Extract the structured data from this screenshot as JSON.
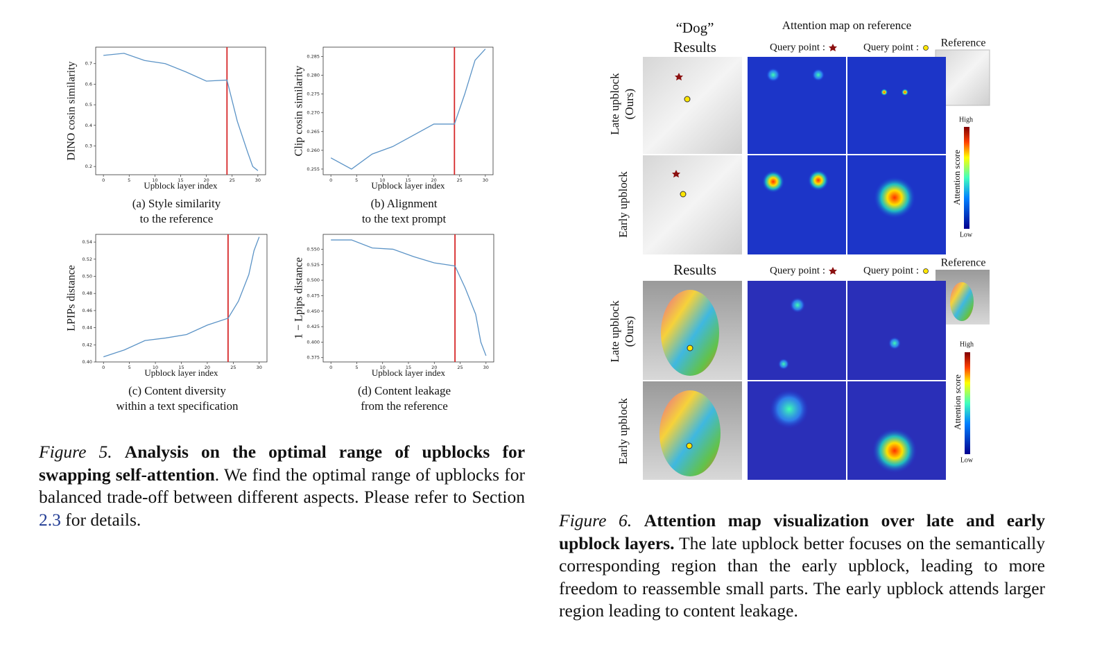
{
  "chart_data": [
    {
      "type": "line",
      "y_label": "DINO cosin similarity",
      "x_label": "Upblock layer index",
      "caption": [
        "(a) Style similarity",
        "to the reference"
      ],
      "x": [
        0,
        4,
        8,
        12,
        16,
        20,
        24,
        26,
        28,
        29,
        30
      ],
      "values": [
        0.74,
        0.75,
        0.715,
        0.7,
        0.66,
        0.615,
        0.62,
        0.42,
        0.27,
        0.2,
        0.18
      ],
      "color": "#5b93c6",
      "vline": 24,
      "vline_color": "#d62728",
      "xlim": [
        -1.5,
        31.5
      ],
      "xticks": [
        0,
        5,
        10,
        15,
        20,
        25,
        30
      ],
      "ylim": [
        0.16,
        0.78
      ],
      "yticks": [
        0.2,
        0.3,
        0.4,
        0.5,
        0.6,
        0.7
      ]
    },
    {
      "type": "line",
      "y_label": "Clip cosin similarity",
      "x_label": "Upblock layer index",
      "caption": [
        "(b) Alignment",
        "to the text prompt"
      ],
      "x": [
        0,
        4,
        8,
        12,
        16,
        20,
        24,
        26,
        28,
        30
      ],
      "values": [
        0.258,
        0.255,
        0.259,
        0.261,
        0.264,
        0.267,
        0.267,
        0.275,
        0.284,
        0.287
      ],
      "color": "#5b93c6",
      "vline": 24,
      "vline_color": "#d62728",
      "xlim": [
        -1.5,
        31.5
      ],
      "xticks": [
        0,
        5,
        10,
        15,
        20,
        25,
        30
      ],
      "ylim": [
        0.2535,
        0.2875
      ],
      "yticks": [
        0.255,
        {
          "value": 0.26,
          "label": "0.260"
        },
        0.265,
        {
          "value": 0.27,
          "label": "0.270"
        },
        0.275,
        {
          "value": 0.28,
          "label": "0.280"
        },
        0.285
      ]
    },
    {
      "type": "line",
      "y_label": "LPIPs distance",
      "x_label": "Upblock layer index",
      "caption": [
        "(c) Content diversity",
        "within a text specification"
      ],
      "x": [
        0,
        4,
        8,
        12,
        16,
        20,
        24,
        26,
        28,
        29,
        30
      ],
      "values": [
        0.406,
        0.414,
        0.425,
        0.428,
        0.432,
        0.443,
        0.451,
        0.471,
        0.502,
        0.53,
        0.546
      ],
      "color": "#5b93c6",
      "vline": 24,
      "vline_color": "#d62728",
      "xlim": [
        -1.5,
        31.5
      ],
      "xticks": [
        0,
        5,
        10,
        15,
        20,
        25,
        30
      ],
      "ylim": [
        0.4,
        0.549
      ],
      "yticks": [
        {
          "value": 0.4,
          "label": "0.40"
        },
        0.42,
        0.44,
        0.46,
        0.48,
        {
          "value": 0.5,
          "label": "0.50"
        },
        0.52,
        0.54
      ]
    },
    {
      "type": "line",
      "y_label": "1 − Lpips distance",
      "x_label": "Upblock layer index",
      "caption": [
        "(d) Content leakage",
        "from the reference"
      ],
      "x": [
        0,
        4,
        8,
        12,
        16,
        20,
        24,
        26,
        28,
        29,
        30
      ],
      "values": [
        0.565,
        0.565,
        0.552,
        0.55,
        0.538,
        0.528,
        0.523,
        0.487,
        0.445,
        0.4,
        0.378
      ],
      "color": "#5b93c6",
      "vline": 24,
      "vline_color": "#d62728",
      "xlim": [
        -1.5,
        31.5
      ],
      "xticks": [
        0,
        5,
        10,
        15,
        20,
        25,
        30
      ],
      "ylim": [
        0.368,
        0.574
      ],
      "yticks": [
        0.375,
        {
          "value": 0.4,
          "label": "0.400"
        },
        0.425,
        {
          "value": 0.45,
          "label": "0.450"
        },
        0.475,
        {
          "value": 0.5,
          "label": "0.500"
        },
        0.525,
        {
          "value": 0.55,
          "label": "0.550"
        }
      ]
    }
  ],
  "figure5": {
    "label": "Figure 5.",
    "bold": "Analysis on the optimal range of upblocks for swapping self-attention",
    "text": ". We find the optimal range of upblocks for balanced trade-off between different aspects. Please refer to Section ",
    "link": "2.3",
    "tail": " for details."
  },
  "figure6": {
    "top": {
      "results": [
        "“Dog”",
        "Results"
      ],
      "attention_title": "Attention map on reference",
      "query1": "Query point :",
      "query2": "Query point :",
      "reference": "Reference",
      "rows": [
        [
          "Late upblock",
          "(Ours)"
        ],
        [
          "Early upblock"
        ]
      ],
      "high": "High",
      "low": "Low",
      "score": "Attention score"
    },
    "bottom": {
      "results": "Results",
      "query1": "Query point :",
      "query2": "Query point :",
      "reference": "Reference",
      "rows": [
        [
          "Late upblock",
          "(Ours)"
        ],
        [
          "Early upblock"
        ]
      ],
      "high": "High",
      "low": "Low",
      "score": "Attention score"
    },
    "caption": {
      "label": "Figure 6.",
      "bold": "Attention map visualization over late and early upblock layers.",
      "text": " The late upblock better focuses on the semantically corresponding region than the early upblock, leading to more freedom to reassemble small parts. The early upblock attends larger region leading to content leakage."
    }
  }
}
